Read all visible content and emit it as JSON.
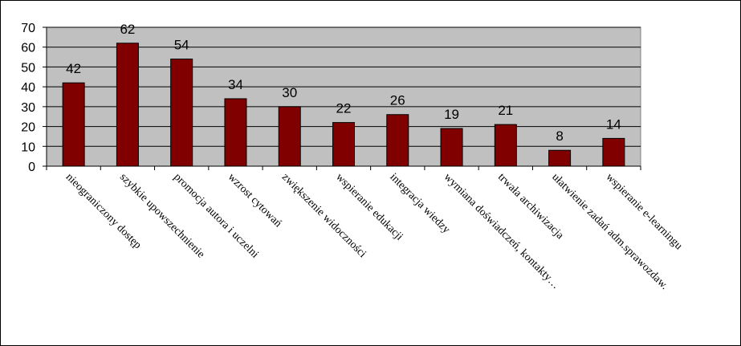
{
  "chart_data": {
    "type": "bar",
    "categories": [
      "nieograniczony dostęp",
      "szybkie upowszechnienie",
      "promocja autora i uczelni",
      "wzrost cytowań",
      "zwiększenie widoczności",
      "wspieranie edukacji",
      "integracja wiedzy",
      "wymiana doświadczeń, kontakty…",
      "trwała archiwizacja",
      "ułatwienie zadań adm.sprawozdaw.",
      "wspieranie e-learningu"
    ],
    "values": [
      42,
      62,
      54,
      34,
      30,
      22,
      26,
      19,
      21,
      8,
      14
    ],
    "ylim": [
      0,
      70
    ],
    "yticks": [
      0,
      10,
      20,
      30,
      40,
      50,
      60,
      70
    ],
    "grid": true,
    "legend": "none",
    "colors": {
      "bar": "#800000",
      "plot_background": "#c0c0c0",
      "gridline": "#000000"
    }
  }
}
